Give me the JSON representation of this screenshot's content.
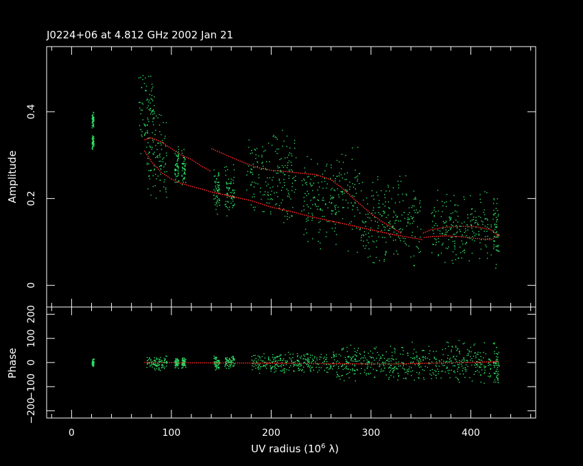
{
  "chart_data": {
    "type": "scatter",
    "title": "J0224+06 at 4.812 GHz 2002 Jan 21",
    "xlabel": "UV radius  (10",
    "xlabel_exp": "6",
    "xlabel_unit": " λ)",
    "xlim": [
      -25,
      465
    ],
    "x_ticks": [
      "0",
      "100",
      "200",
      "300",
      "400"
    ],
    "colors": {
      "background": "#000000",
      "axes": "#ffffff",
      "data": "#2ee86a",
      "model": "#ff2a2a"
    },
    "panels": [
      {
        "ylabel": "Amplitude",
        "ylim": [
          -0.05,
          0.55
        ],
        "y_ticks": [
          "0",
          "0.2",
          "0.4"
        ],
        "data_clusters": [
          {
            "x": 21,
            "y": 0.38,
            "dy": 0.015,
            "dx": 1
          },
          {
            "x": 21,
            "y": 0.33,
            "dy": 0.01,
            "dx": 1
          },
          {
            "x": 75,
            "y": 0.4,
            "dy": 0.07,
            "dx": 8
          },
          {
            "x": 85,
            "y": 0.3,
            "dy": 0.07,
            "dx": 10
          },
          {
            "x": 105,
            "y": 0.28,
            "dy": 0.03,
            "dx": 2
          },
          {
            "x": 112,
            "y": 0.27,
            "dy": 0.03,
            "dx": 2
          },
          {
            "x": 145,
            "y": 0.22,
            "dy": 0.04,
            "dx": 3
          },
          {
            "x": 158,
            "y": 0.22,
            "dy": 0.04,
            "dx": 5
          },
          {
            "x": 200,
            "y": 0.25,
            "dy": 0.07,
            "dx": 25
          },
          {
            "x": 260,
            "y": 0.2,
            "dy": 0.08,
            "dx": 30
          },
          {
            "x": 320,
            "y": 0.15,
            "dy": 0.07,
            "dx": 30
          },
          {
            "x": 390,
            "y": 0.13,
            "dy": 0.06,
            "dx": 30
          },
          {
            "x": 425,
            "y": 0.12,
            "dy": 0.06,
            "dx": 3
          }
        ],
        "model_curves": [
          {
            "x": [
              73,
              80,
              90,
              100,
              110,
              120,
              130,
              140,
              160,
              180,
              200,
              220,
              240,
              260,
              280,
              300,
              320,
              335,
              345,
              352
            ],
            "y": [
              0.31,
              0.285,
              0.26,
              0.245,
              0.235,
              0.228,
              0.222,
              0.215,
              0.205,
              0.195,
              0.18,
              0.17,
              0.158,
              0.148,
              0.138,
              0.128,
              0.118,
              0.112,
              0.108,
              0.105
            ]
          },
          {
            "x": [
              73,
              80,
              90,
              100,
              110,
              120,
              130,
              140
            ],
            "y": [
              0.335,
              0.34,
              0.33,
              0.315,
              0.3,
              0.29,
              0.275,
              0.262
            ]
          },
          {
            "x": [
              140,
              155,
              170,
              185,
              200,
              215,
              230,
              245,
              260,
              270,
              280,
              290,
              300,
              310,
              320,
              330
            ],
            "y": [
              0.315,
              0.3,
              0.285,
              0.272,
              0.265,
              0.262,
              0.258,
              0.255,
              0.243,
              0.226,
              0.205,
              0.185,
              0.165,
              0.148,
              0.135,
              0.12
            ]
          },
          {
            "x": [
              352,
              360,
              375,
              390,
              405,
              420,
              428,
              420,
              405,
              390,
              375,
              360,
              352
            ],
            "y": [
              0.12,
              0.128,
              0.134,
              0.136,
              0.135,
              0.128,
              0.115,
              0.105,
              0.108,
              0.112,
              0.114,
              0.112,
              0.11
            ]
          }
        ]
      },
      {
        "ylabel": "Phase",
        "ylim": [
          -230,
          230
        ],
        "y_ticks": [
          "200",
          "100",
          "0",
          "−100",
          "−200"
        ],
        "data_clusters": [
          {
            "x": 21,
            "y": 0,
            "dy": 15,
            "dx": 1
          },
          {
            "x": 85,
            "y": 0,
            "dy": 20,
            "dx": 10
          },
          {
            "x": 105,
            "y": 0,
            "dy": 15,
            "dx": 2
          },
          {
            "x": 112,
            "y": 0,
            "dy": 15,
            "dx": 2
          },
          {
            "x": 145,
            "y": 0,
            "dy": 20,
            "dx": 3
          },
          {
            "x": 158,
            "y": 0,
            "dy": 20,
            "dx": 5
          },
          {
            "x": 220,
            "y": 0,
            "dy": 30,
            "dx": 40
          },
          {
            "x": 300,
            "y": 0,
            "dy": 50,
            "dx": 40
          },
          {
            "x": 380,
            "y": 0,
            "dy": 60,
            "dx": 40
          },
          {
            "x": 425,
            "y": 0,
            "dy": 70,
            "dx": 3
          }
        ],
        "model_curves": [
          {
            "x": [
              73,
              120,
              170,
              220,
              270,
              320,
              370,
              428
            ],
            "y": [
              0,
              -1,
              -2,
              -3,
              -5,
              -6,
              -2,
              3
            ]
          }
        ]
      }
    ]
  }
}
